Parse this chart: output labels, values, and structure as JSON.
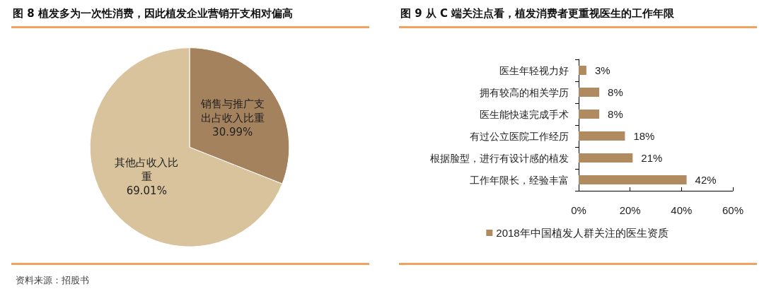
{
  "chart_data": [
    {
      "type": "pie",
      "title": "图 8 植发多为一次性消费，因此植发企业营销开支相对偏高",
      "categories": [
        "销售与推广支出占收入比重",
        "其他占收入比重"
      ],
      "values": [
        30.99,
        69.01
      ],
      "value_labels": [
        "30.99%",
        "69.01%"
      ],
      "colors": [
        "#a5825e",
        "#d8c39c"
      ],
      "legend": false,
      "annotations": [
        "资料来源：招股书"
      ]
    },
    {
      "type": "bar",
      "orientation": "horizontal",
      "title": "图 9 从 C 端关注点看，植发消费者更重视医生的工作年限",
      "categories": [
        "医生年轻视力好",
        "拥有较高的相关学历",
        "医生能快速完成手术",
        "有过公立医院工作经历",
        "根据脸型，进行有设计感的植发",
        "工作年限长，经验丰富"
      ],
      "series": [
        {
          "name": "2018年中国植发人群关注的医生资质",
          "color": "#b08b60",
          "values": [
            3,
            8,
            8,
            18,
            21,
            42
          ],
          "value_labels": [
            "3%",
            "8%",
            "8%",
            "18%",
            "21%",
            "42%"
          ]
        }
      ],
      "xlim": [
        0,
        60
      ],
      "xticks": [
        {
          "value": 0,
          "label": "0%"
        },
        {
          "value": 20,
          "label": "20%"
        },
        {
          "value": 40,
          "label": "40%"
        },
        {
          "value": 60,
          "label": "60%"
        }
      ],
      "grid": false,
      "legend": "bottom"
    }
  ]
}
